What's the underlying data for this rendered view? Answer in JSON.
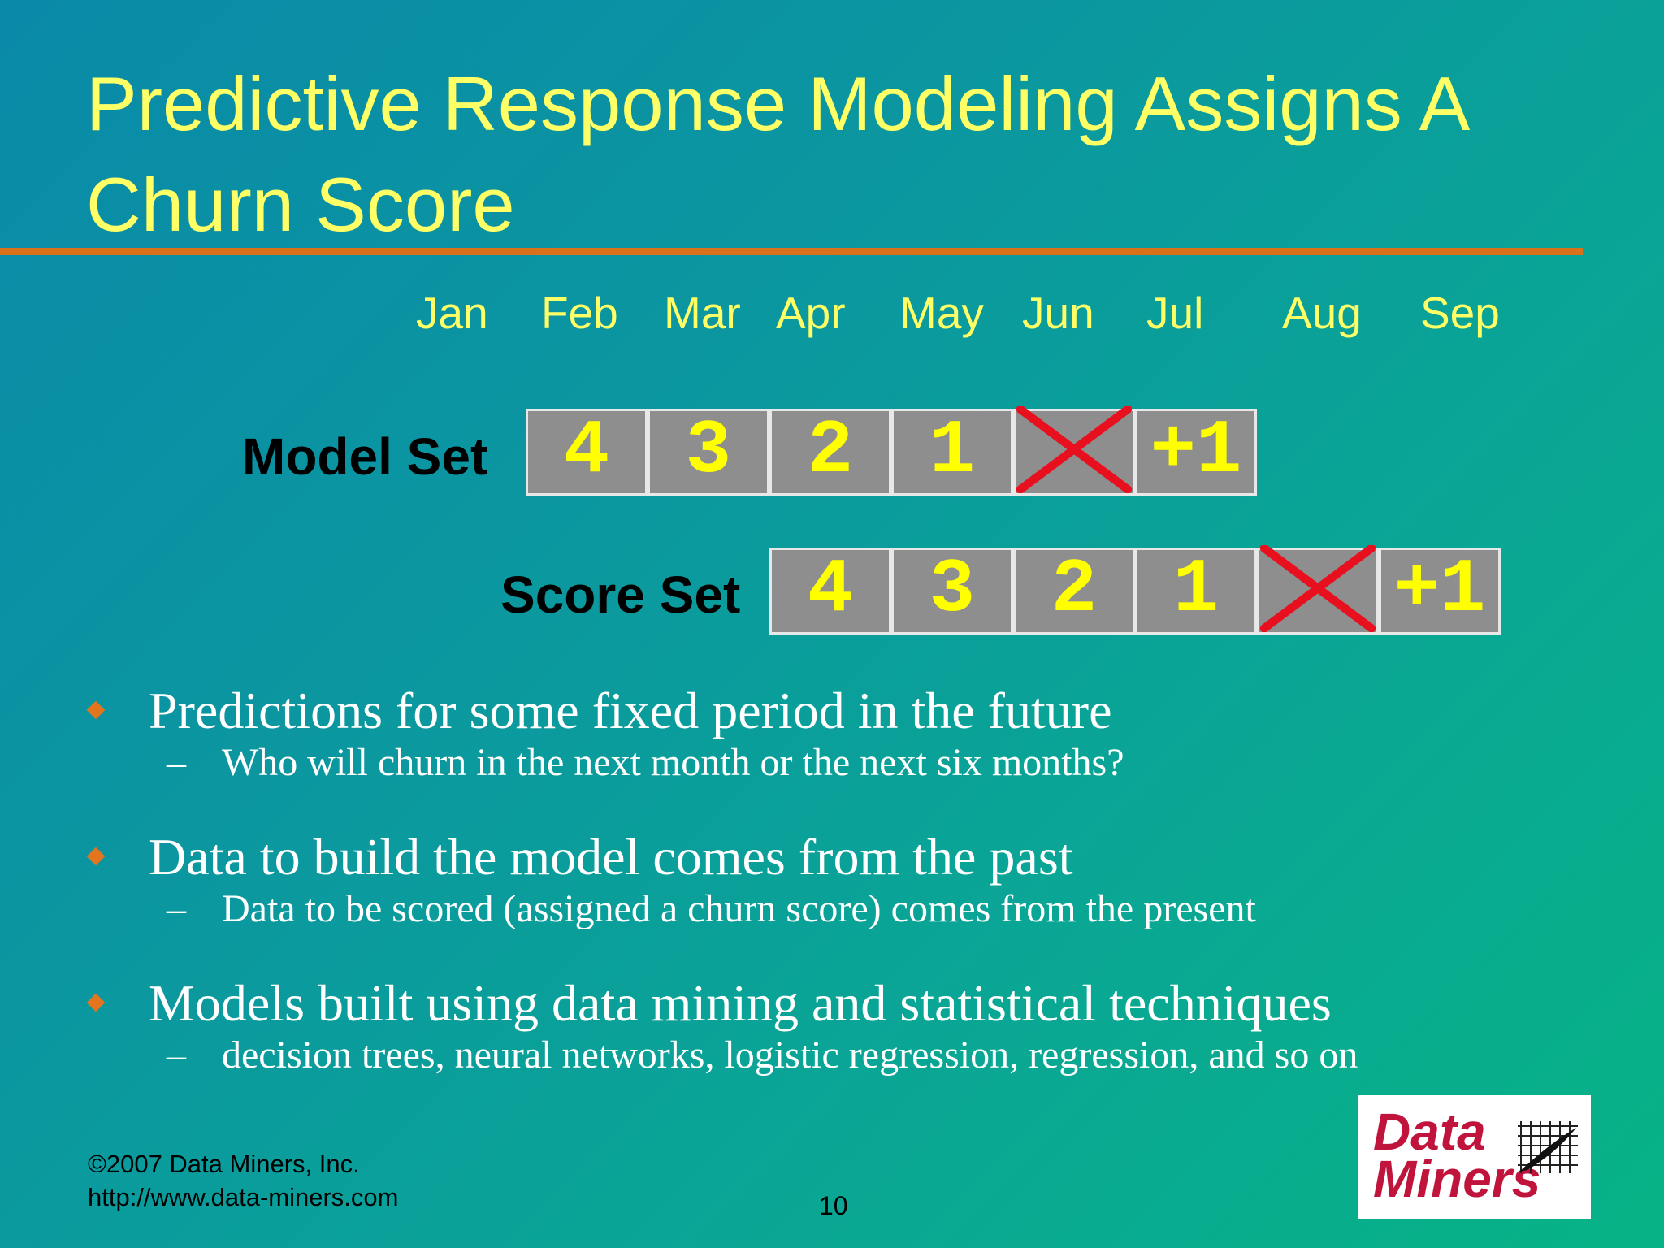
{
  "slide": {
    "title": "Predictive Response Modeling Assigns A Churn Score"
  },
  "timeline": {
    "months": [
      "Jan",
      "Feb",
      "Mar",
      "Apr",
      "May",
      "Jun",
      "Jul",
      "Aug",
      "Sep"
    ]
  },
  "model_set": {
    "label": "Model Set",
    "cells": [
      "4",
      "3",
      "2",
      "1",
      "",
      "+1"
    ]
  },
  "score_set": {
    "label": "Score Set",
    "cells": [
      "4",
      "3",
      "2",
      "1",
      "",
      "+1"
    ]
  },
  "bullets": [
    {
      "text": "Predictions for some fixed period in the future",
      "sub": "Who will churn in the next month or the next six months?"
    },
    {
      "text": "Data to build the model comes from the past",
      "sub": "Data to be scored (assigned a churn score) comes from the present"
    },
    {
      "text": "Models built using data mining and statistical techniques",
      "sub": "decision trees, neural networks, logistic regression, regression, and so on"
    }
  ],
  "footer": {
    "copyright": "©2007 Data Miners, Inc.",
    "url": "http://www.data-miners.com",
    "page_number": "10"
  },
  "logo": {
    "line1": "Data",
    "line2": "Miners"
  },
  "colors": {
    "title": "#ffff66",
    "rule": "#d9701a",
    "cell_bg": "#8e8e8e",
    "cell_digit": "#ffff00",
    "cross": "#e8101e",
    "bullet_diamond": "#e2751e",
    "logo_text": "#c0143c"
  }
}
